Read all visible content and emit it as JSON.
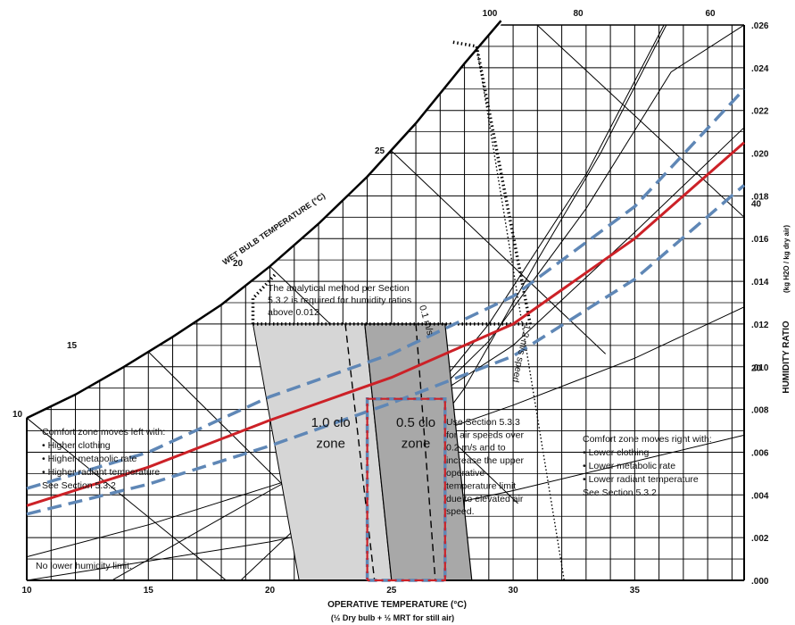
{
  "chart_data": {
    "type": "psychrometric",
    "xlabel": "OPERATIVE TEMPERATURE   (°C)",
    "xlabel_sub": "(½ Dry bulb + ½ MRT for still air)",
    "ylabel": "HUMIDITY RATIO",
    "ylabel_units": "(kg H2O / kg dry air)",
    "wet_bulb_label": "WET BULB TEMPERATURE   (°C)",
    "xlim": [
      10,
      39.5
    ],
    "ylim": [
      0,
      0.026
    ],
    "x_ticks": [
      "10",
      "15",
      "20",
      "25",
      "30",
      "35"
    ],
    "y_ticks": [
      ".000",
      ".002",
      ".004",
      ".006",
      ".008",
      ".010",
      ".012",
      ".014",
      ".016",
      ".018",
      ".020",
      ".022",
      ".024",
      ".026"
    ],
    "rh_top_labels": [
      "100",
      "80",
      "60"
    ],
    "rh_right_labels": [
      "40",
      "20"
    ],
    "wet_bulb_ticks": [
      "10",
      "15",
      "20",
      "25"
    ],
    "wet_bulb_values": [
      10,
      15,
      20,
      25
    ],
    "saturation_curve": [
      {
        "x": 10,
        "y": 0.0076
      },
      {
        "x": 12,
        "y": 0.0087
      },
      {
        "x": 14,
        "y": 0.01
      },
      {
        "x": 16,
        "y": 0.0114
      },
      {
        "x": 18,
        "y": 0.0129
      },
      {
        "x": 20,
        "y": 0.0147
      },
      {
        "x": 22,
        "y": 0.0167
      },
      {
        "x": 24,
        "y": 0.0189
      },
      {
        "x": 26,
        "y": 0.0214
      },
      {
        "x": 28,
        "y": 0.0242
      },
      {
        "x": 29.5,
        "y": 0.0262
      }
    ],
    "rh_curves": [
      {
        "points": [
          {
            "x": 24.5,
            "y": 0.0036
          },
          {
            "x": 28,
            "y": 0.009
          },
          {
            "x": 31,
            "y": 0.015
          },
          {
            "x": 33.6,
            "y": 0.02
          },
          {
            "x": 36.3,
            "y": 0.026
          }
        ]
      },
      {
        "points": [
          {
            "x": 21,
            "y": 0.0017
          },
          {
            "x": 25,
            "y": 0.0064
          },
          {
            "x": 29,
            "y": 0.012
          },
          {
            "x": 33,
            "y": 0.019
          },
          {
            "x": 36.2,
            "y": 0.026
          }
        ]
      },
      {
        "points": [
          {
            "x": 18.8,
            "y": 0.0
          },
          {
            "x": 24,
            "y": 0.0056
          },
          {
            "x": 29,
            "y": 0.0112
          },
          {
            "x": 33,
            "y": 0.0174
          },
          {
            "x": 36.5,
            "y": 0.0238
          },
          {
            "x": 39.5,
            "y": 0.026
          }
        ]
      },
      {
        "points": [
          {
            "x": 13.5,
            "y": 0.0
          },
          {
            "x": 20,
            "y": 0.0042
          },
          {
            "x": 25,
            "y": 0.0073
          },
          {
            "x": 30,
            "y": 0.011
          },
          {
            "x": 35,
            "y": 0.0163
          },
          {
            "x": 39.5,
            "y": 0.0212
          }
        ]
      },
      {
        "points": [
          {
            "x": 10,
            "y": 0.0011
          },
          {
            "x": 15,
            "y": 0.0026
          },
          {
            "x": 20,
            "y": 0.0044
          },
          {
            "x": 25,
            "y": 0.0062
          },
          {
            "x": 30,
            "y": 0.0082
          },
          {
            "x": 35,
            "y": 0.0104
          },
          {
            "x": 39.5,
            "y": 0.0128
          }
        ]
      },
      {
        "points": [
          {
            "x": 10,
            "y": 0.0
          },
          {
            "x": 20,
            "y": 0.0018
          },
          {
            "x": 30,
            "y": 0.0042
          },
          {
            "x": 39.5,
            "y": 0.0068
          }
        ]
      }
    ],
    "wet_bulb_lines": [
      {
        "x1": 10,
        "y1": 0.0076,
        "x2": 18.2,
        "y2": 0.0
      },
      {
        "x1": 15,
        "y1": 0.0107,
        "x2": 24.5,
        "y2": 0.0
      },
      {
        "x1": 20,
        "y1": 0.0147,
        "x2": 30.2,
        "y2": 0.0036
      },
      {
        "x1": 25,
        "y1": 0.0201,
        "x2": 33.8,
        "y2": 0.0106
      },
      {
        "x1": 30.8,
        "y1": 0.0262,
        "x2": 39.5,
        "y2": 0.017
      }
    ],
    "zone_1_0_clo": {
      "polygon": [
        {
          "x": 19.3,
          "y": 0.012
        },
        {
          "x": 23.9,
          "y": 0.012
        },
        {
          "x": 25.0,
          "y": 0.0
        },
        {
          "x": 21.2,
          "y": 0.0
        }
      ]
    },
    "zone_0_5_clo": {
      "polygon": [
        {
          "x": 23.9,
          "y": 0.012
        },
        {
          "x": 27.2,
          "y": 0.012
        },
        {
          "x": 28.3,
          "y": 0.0
        },
        {
          "x": 25.0,
          "y": 0.0
        }
      ]
    },
    "humidity_limit_line": {
      "points": [
        {
          "x": 19.3,
          "y": 0.012
        },
        {
          "x": 30.7,
          "y": 0.012
        }
      ]
    },
    "dotted_lines": [
      {
        "points": [
          {
            "x": 19.3,
            "y": 0.012
          },
          {
            "x": 19.3,
            "y": 0.0132
          },
          {
            "x": 20.2,
            "y": 0.0143
          }
        ]
      },
      {
        "points": [
          {
            "x": 30.7,
            "y": 0.012
          },
          {
            "x": 28.5,
            "y": 0.025
          },
          {
            "x": 27.5,
            "y": 0.0252
          }
        ]
      },
      {
        "points": [
          {
            "x": 28.5,
            "y": 0.025
          },
          {
            "x": 32.1,
            "y": 0.0
          }
        ]
      }
    ],
    "dashed_lines": [
      {
        "points": [
          {
            "x": 23.1,
            "y": 0.012
          },
          {
            "x": 24.3,
            "y": 0.0
          }
        ]
      },
      {
        "points": [
          {
            "x": 26.0,
            "y": 0.012
          },
          {
            "x": 26.8,
            "y": 0.0
          }
        ]
      }
    ],
    "red_curve": {
      "points": [
        {
          "x": 10,
          "y": 0.0035
        },
        {
          "x": 15,
          "y": 0.0053
        },
        {
          "x": 20,
          "y": 0.0075
        },
        {
          "x": 25,
          "y": 0.0095
        },
        {
          "x": 30,
          "y": 0.012
        },
        {
          "x": 35,
          "y": 0.016
        },
        {
          "x": 39.5,
          "y": 0.0205
        }
      ]
    },
    "blue_dashed_curves": [
      {
        "points": [
          {
            "x": 10,
            "y": 0.0043
          },
          {
            "x": 15,
            "y": 0.006
          },
          {
            "x": 20,
            "y": 0.0086
          },
          {
            "x": 25,
            "y": 0.0106
          },
          {
            "x": 30,
            "y": 0.0133
          },
          {
            "x": 35,
            "y": 0.0175
          },
          {
            "x": 39.5,
            "y": 0.023
          }
        ]
      },
      {
        "points": [
          {
            "x": 10,
            "y": 0.0031
          },
          {
            "x": 15,
            "y": 0.0045
          },
          {
            "x": 20,
            "y": 0.0063
          },
          {
            "x": 25,
            "y": 0.0083
          },
          {
            "x": 30,
            "y": 0.0105
          },
          {
            "x": 35,
            "y": 0.0141
          },
          {
            "x": 39.5,
            "y": 0.0185
          }
        ]
      }
    ],
    "red_box": {
      "x1": 24.0,
      "x2": 27.2,
      "y1": 0.0,
      "y2": 0.0085
    },
    "blue_box": {
      "x1": 24.0,
      "x2": 27.2,
      "y1": 0.0,
      "y2": 0.0085
    },
    "zone_labels": [
      {
        "text": "1.0 clo",
        "x": 22.5,
        "y": 0.0072
      },
      {
        "text": "zone",
        "x": 22.5,
        "y": 0.0062
      },
      {
        "text": "0.5 clo",
        "x": 26.0,
        "y": 0.0072
      },
      {
        "text": "zone",
        "x": 26.0,
        "y": 0.0062
      }
    ],
    "annotations": {
      "analytical": [
        "The analytical method per Section",
        "5.3.2 is required for humidity ratios",
        "above 0.012."
      ],
      "left": [
        "Comfort zone moves left with:",
        "• Higher clothing",
        "• Higher metabolic rate",
        "• Higher radiant temperature",
        "See Section 5.3.2"
      ],
      "right": [
        "Comfort zone moves right with:",
        "• Lower clothing",
        "• Lower metabolic rate",
        "• Lower radiant temperature",
        "See Section 5.3.2"
      ],
      "elevated": [
        "Use Section 5.3.3",
        "for air speeds over",
        "0.2 m/s and to",
        "increase the upper",
        "operative",
        "temperature limit",
        "due to elevated air",
        "speed."
      ],
      "no_lower": "No lower humidity limit.",
      "speed_01": "0.1 m/s",
      "speed_12": "1.2 m/s speed"
    },
    "grid": true
  }
}
